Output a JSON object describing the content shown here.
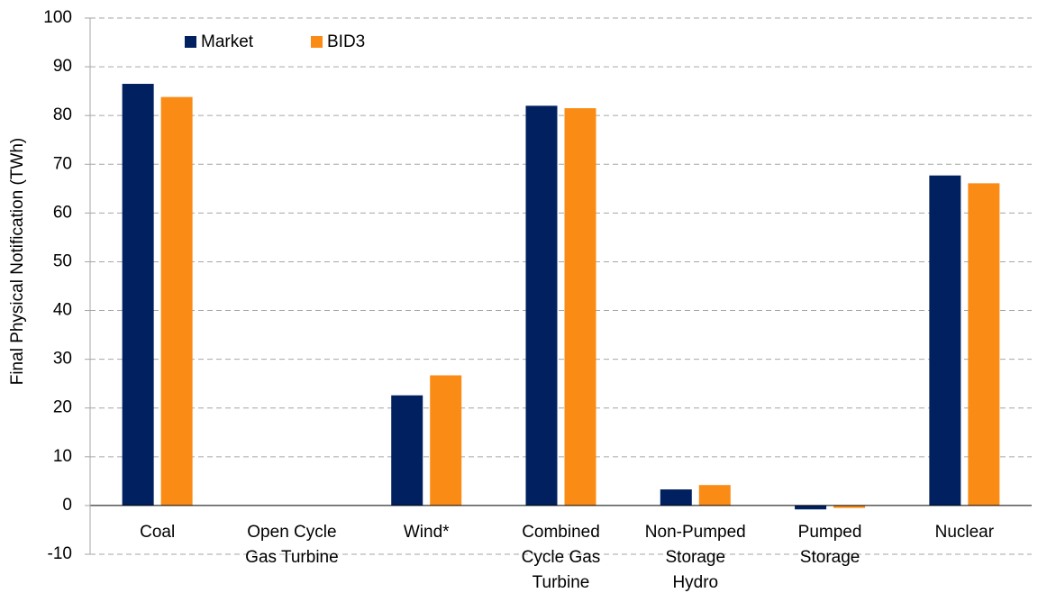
{
  "chart_data": {
    "type": "bar",
    "y_label": "Final Physical Notification (TWh)",
    "categories": [
      "Coal",
      "Open Cycle\nGas Turbine",
      "Wind*",
      "Combined\nCycle Gas\nTurbine",
      "Non-Pumped\nStorage\nHydro",
      "Pumped\nStorage",
      "Nuclear"
    ],
    "series": [
      {
        "name": "Market",
        "color": "#002060",
        "values": [
          86.5,
          0,
          22.6,
          82,
          3.3,
          -0.8,
          67.7
        ]
      },
      {
        "name": "BID3",
        "color": "#fa8c16",
        "values": [
          83.8,
          0,
          26.7,
          81.5,
          4.2,
          -0.5,
          66.1
        ]
      }
    ],
    "ylim": [
      -10,
      100
    ],
    "yticks": [
      -10,
      0,
      10,
      20,
      30,
      40,
      50,
      60,
      70,
      80,
      90,
      100
    ],
    "grid": true,
    "legend": "top-left"
  }
}
